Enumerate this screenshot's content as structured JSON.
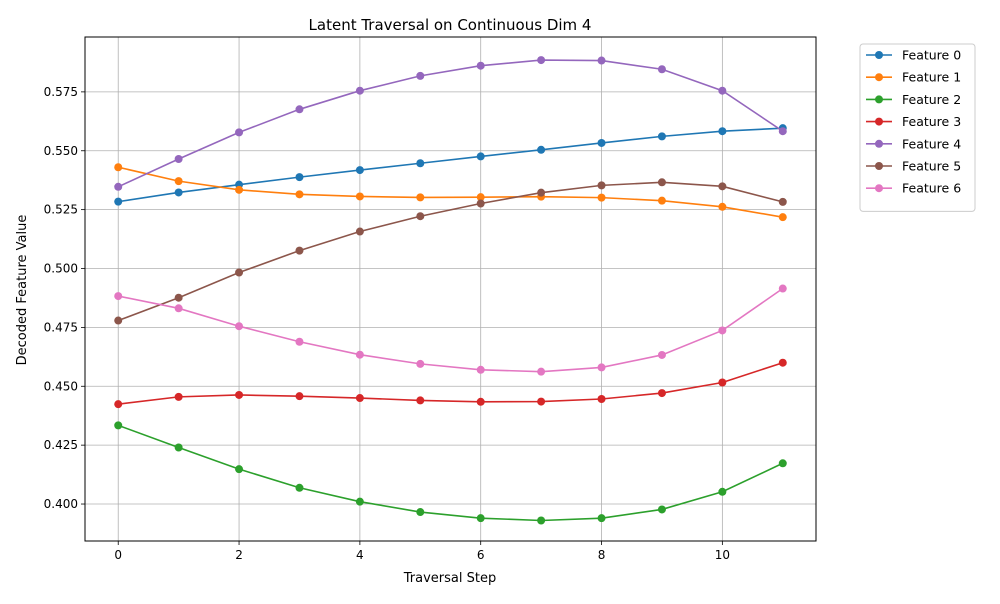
{
  "chart_data": {
    "type": "line",
    "title": "Latent Traversal on Continuous Dim 4",
    "xlabel": "Traversal Step",
    "ylabel": "Decoded Feature Value",
    "x": [
      0,
      1,
      2,
      3,
      4,
      5,
      6,
      7,
      8,
      9,
      10,
      11
    ],
    "xlim": [
      -0.55,
      11.55
    ],
    "ylim": [
      0.3843,
      0.5983
    ],
    "xticks": [
      0,
      2,
      4,
      6,
      8,
      10
    ],
    "xtick_labels": [
      "0",
      "2",
      "4",
      "6",
      "8",
      "10"
    ],
    "yticks": [
      0.4,
      0.425,
      0.45,
      0.475,
      0.5,
      0.525,
      0.55,
      0.575
    ],
    "ytick_labels": [
      "0.400",
      "0.425",
      "0.450",
      "0.475",
      "0.500",
      "0.525",
      "0.550",
      "0.575"
    ],
    "grid": true,
    "legend_position": "outside-top-right",
    "series": [
      {
        "name": "Feature 0",
        "color": "#1f77b4",
        "values": [
          0.5284,
          0.5323,
          0.5356,
          0.5388,
          0.5418,
          0.5447,
          0.5476,
          0.5504,
          0.5533,
          0.5561,
          0.5583,
          0.5596
        ]
      },
      {
        "name": "Feature 1",
        "color": "#ff7f0e",
        "values": [
          0.543,
          0.5371,
          0.5334,
          0.5315,
          0.5306,
          0.5302,
          0.5303,
          0.5305,
          0.5301,
          0.5288,
          0.5262,
          0.5218
        ]
      },
      {
        "name": "Feature 2",
        "color": "#2ca02c",
        "values": [
          0.4334,
          0.424,
          0.4148,
          0.4069,
          0.401,
          0.3966,
          0.394,
          0.393,
          0.394,
          0.3977,
          0.4052,
          0.4173
        ]
      },
      {
        "name": "Feature 3",
        "color": "#d62728",
        "values": [
          0.4424,
          0.4455,
          0.4463,
          0.4458,
          0.445,
          0.444,
          0.4434,
          0.4435,
          0.4446,
          0.4471,
          0.4516,
          0.46
        ]
      },
      {
        "name": "Feature 4",
        "color": "#9467bd",
        "values": [
          0.5347,
          0.5465,
          0.5578,
          0.5676,
          0.5755,
          0.5818,
          0.5861,
          0.5885,
          0.5883,
          0.5846,
          0.5755,
          0.5583
        ]
      },
      {
        "name": "Feature 5",
        "color": "#8c564b",
        "values": [
          0.4779,
          0.4876,
          0.4983,
          0.5076,
          0.5157,
          0.5222,
          0.5276,
          0.5322,
          0.5353,
          0.5366,
          0.5349,
          0.5283
        ]
      },
      {
        "name": "Feature 6",
        "color": "#e377c2",
        "values": [
          0.4883,
          0.4831,
          0.4755,
          0.4689,
          0.4634,
          0.4595,
          0.457,
          0.4562,
          0.458,
          0.4633,
          0.4737,
          0.4915
        ]
      }
    ]
  }
}
